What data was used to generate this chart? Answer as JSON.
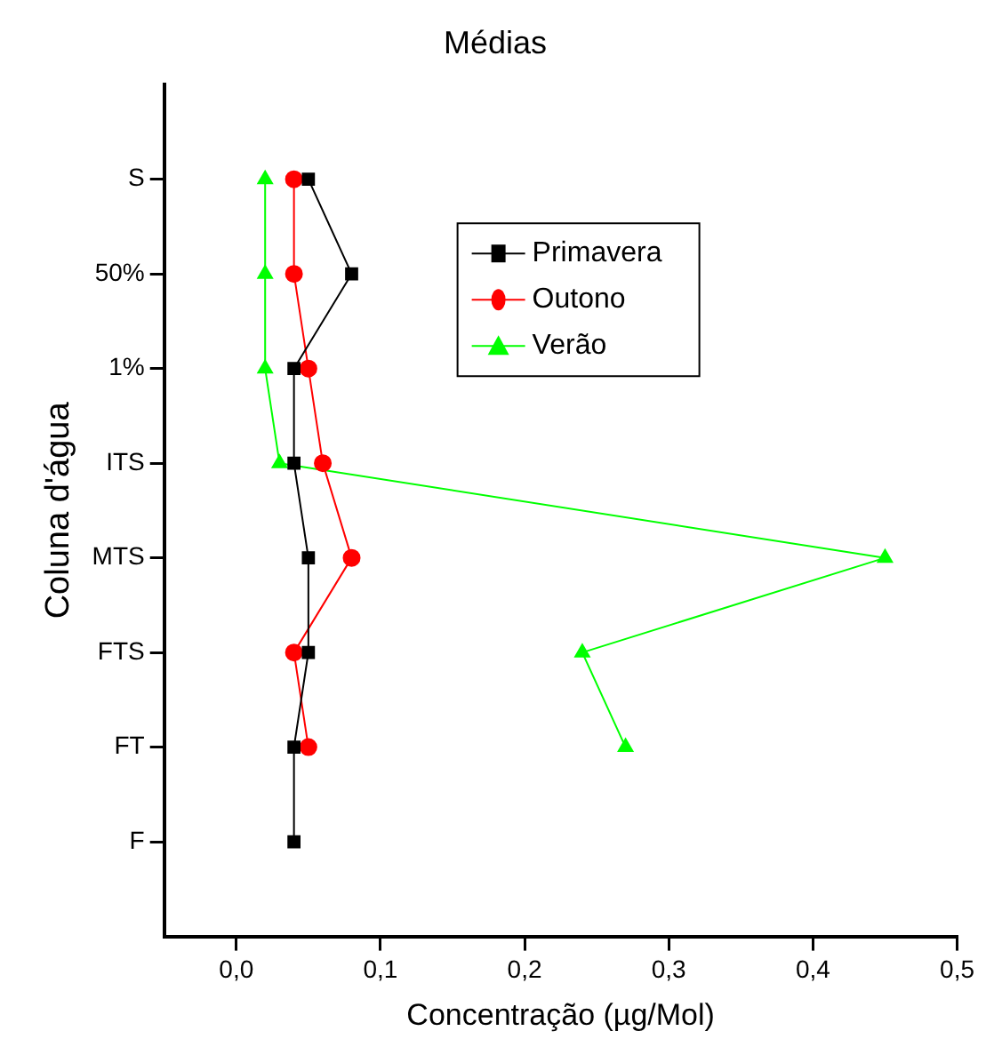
{
  "chart_data": {
    "type": "line",
    "orientation": "horizontal",
    "title": "Médias",
    "xlabel": "Concentração (µg/Mol)",
    "ylabel": "Coluna d'água",
    "categories": [
      "S",
      "50%",
      "1%",
      "ITS",
      "MTS",
      "FTS",
      "FT",
      "F"
    ],
    "series": [
      {
        "name": "Primavera",
        "color": "#000000",
        "marker": "square",
        "values": [
          0.05,
          0.08,
          0.04,
          0.04,
          0.05,
          0.05,
          0.04,
          0.04
        ]
      },
      {
        "name": "Outono",
        "color": "#ff0000",
        "marker": "circle",
        "values": [
          0.04,
          0.04,
          0.05,
          0.06,
          0.08,
          0.04,
          0.05,
          null
        ]
      },
      {
        "name": "Verão",
        "color": "#00ff00",
        "marker": "triangle",
        "values": [
          0.02,
          0.02,
          0.02,
          0.03,
          0.45,
          0.24,
          0.27,
          null
        ]
      }
    ],
    "xlim": [
      -0.05,
      0.5
    ],
    "xticks": [
      {
        "value": 0,
        "label": "0,0"
      },
      {
        "value": 0.1,
        "label": "0,1"
      },
      {
        "value": 0.2,
        "label": "0,2"
      },
      {
        "value": 0.3,
        "label": "0,3"
      },
      {
        "value": 0.4,
        "label": "0,4"
      },
      {
        "value": 0.5,
        "label": "0,5"
      }
    ],
    "grid": false,
    "legend": "top"
  }
}
